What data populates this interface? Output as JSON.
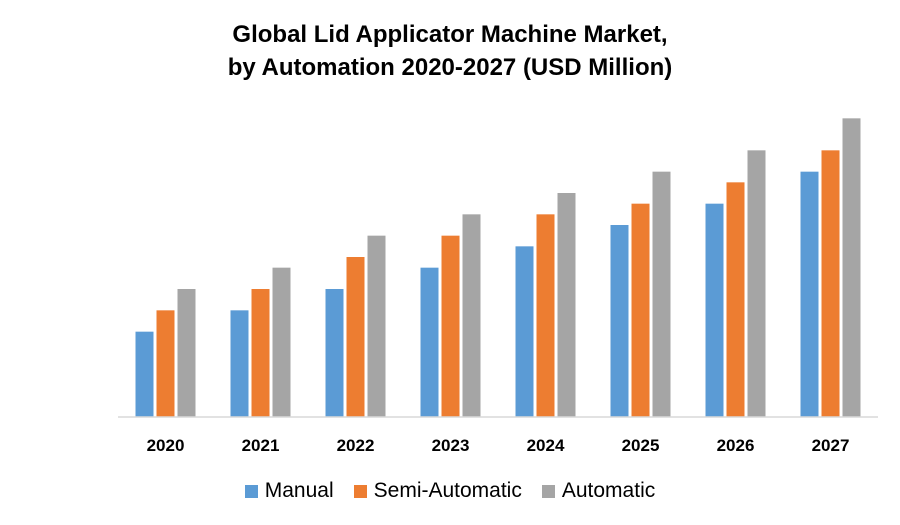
{
  "chart_data": {
    "type": "bar",
    "title_line1": "Global Lid Applicator Machine Market,",
    "title_line2": "by Automation  2020-2027 (USD Million)",
    "xlabel": "",
    "ylabel": "",
    "categories": [
      "2020",
      "2021",
      "2022",
      "2023",
      "2024",
      "2025",
      "2026",
      "2027"
    ],
    "series": [
      {
        "name": "Manual",
        "color": "#5B9BD5",
        "values": [
          80,
          100,
          120,
          140,
          160,
          180,
          200,
          230
        ]
      },
      {
        "name": "Semi-Automatic",
        "color": "#ED7D31",
        "values": [
          100,
          120,
          150,
          170,
          190,
          200,
          220,
          250
        ]
      },
      {
        "name": "Automatic",
        "color": "#A5A5A5",
        "values": [
          120,
          140,
          170,
          190,
          210,
          230,
          250,
          280
        ]
      }
    ],
    "ylim": [
      0,
      300
    ],
    "grid": false,
    "legend_position": "bottom"
  }
}
